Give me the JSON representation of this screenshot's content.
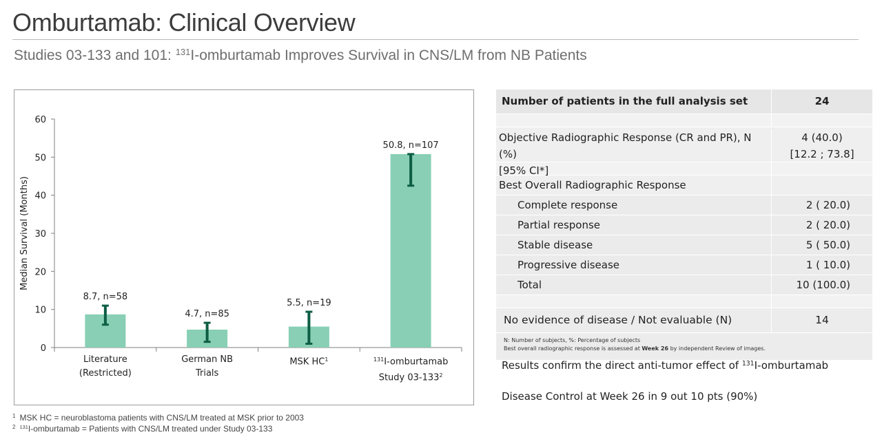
{
  "header": {
    "title": "Omburtamab: Clinical Overview",
    "subtitle_pre": "Studies 03-133 and 101: ",
    "subtitle_sup": "131",
    "subtitle_post": "I-omburtamab Improves Survival in CNS/LM from NB Patients"
  },
  "chart_data": {
    "type": "bar",
    "title": "",
    "ylabel": "Median Survival (Months)",
    "xlabel": "",
    "ylim": [
      0,
      60
    ],
    "yticks": [
      0,
      10,
      20,
      30,
      40,
      50,
      60
    ],
    "grid": false,
    "legend": "none",
    "bar_color": "#88cfb5",
    "error_color": "#0d5e44",
    "categories": [
      {
        "line1": "Literature",
        "line2": "(Restricted)",
        "sup": ""
      },
      {
        "line1": "German NB",
        "line2": "Trials",
        "sup": ""
      },
      {
        "line1": "MSK HC",
        "line2": "",
        "sup": "1"
      },
      {
        "line1": "131I-omburtamab",
        "line2": "Study 03-133",
        "sup": "2"
      }
    ],
    "values": [
      8.7,
      4.7,
      5.5,
      50.8
    ],
    "error_low": [
      6.0,
      1.5,
      1.0,
      42.5
    ],
    "error_high": [
      11.0,
      6.5,
      9.4,
      50.8
    ],
    "data_labels": [
      "8.7, n=58",
      "4.7, n=85",
      "5.5, n=19",
      "50.8, n=107"
    ]
  },
  "table": {
    "header_label": "Number of patients in the full analysis set",
    "header_value": "24",
    "orr_label_1": "Objective Radiographic Response (CR and PR), N (%)",
    "orr_label_2": "[95% CI*]",
    "orr_value_1": "4 (40.0)",
    "orr_value_2": "[12.2 ; 73.8]",
    "bor_label": "Best Overall Radiographic Response",
    "responses": [
      {
        "label": "Complete response",
        "value": "2 ( 20.0)"
      },
      {
        "label": "Partial response",
        "value": "2 ( 20.0)"
      },
      {
        "label": "Stable disease",
        "value": "5 ( 50.0)"
      },
      {
        "label": "Progressive disease",
        "value": "1 ( 10.0)"
      },
      {
        "label": "Total",
        "value": "10 (100.0)"
      }
    ],
    "ned_label": "No evidence of disease / Not evaluable (N)",
    "ned_value": "14",
    "note_1": "N: Number of subjects, %: Percentage of subjects",
    "note_2_pre": "Best overall radiographic response is assessed at ",
    "note_2_bold": "Week 26",
    "note_2_post": " by independent Review of images."
  },
  "results": {
    "line1_pre": "Results confirm the direct anti-tumor effect of ",
    "line1_sup": "131",
    "line1_post": "I-omburtamab",
    "line2": "Disease Control at Week 26 in 9 out 10 pts (90%)"
  },
  "footnotes": [
    {
      "num": "1",
      "text": "MSK HC = neuroblastoma patients with CNS/LM treated at MSK prior to 2003"
    },
    {
      "num": "2",
      "sup": "131",
      "text": "I-omburtamab = Patients with CNS/LM treated under Study 03-133"
    }
  ]
}
